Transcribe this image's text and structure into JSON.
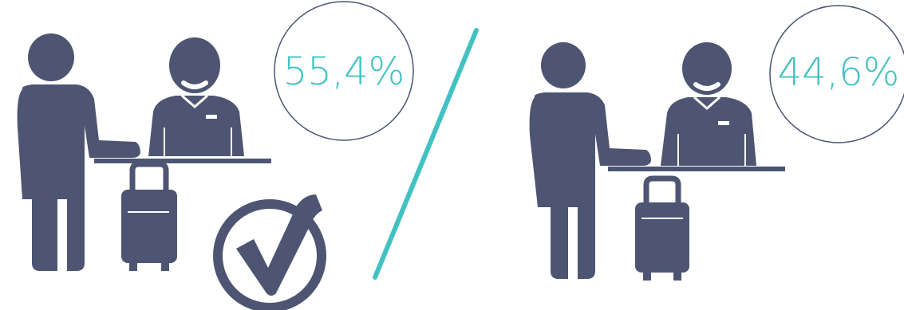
{
  "colors": {
    "figure": "#4d5573",
    "accent": "#42c1c2",
    "circle_stroke": "#4d5573"
  },
  "left_panel": {
    "percentage_label": "55,4%",
    "share_percent": 55.4,
    "icons": [
      "traveler-icon",
      "receptionist-icon",
      "suitcase-icon",
      "checkmark-icon"
    ]
  },
  "right_panel": {
    "percentage_label": "44,6%",
    "share_percent": 44.6,
    "icons": [
      "traveler-icon",
      "receptionist-icon",
      "suitcase-icon"
    ]
  }
}
